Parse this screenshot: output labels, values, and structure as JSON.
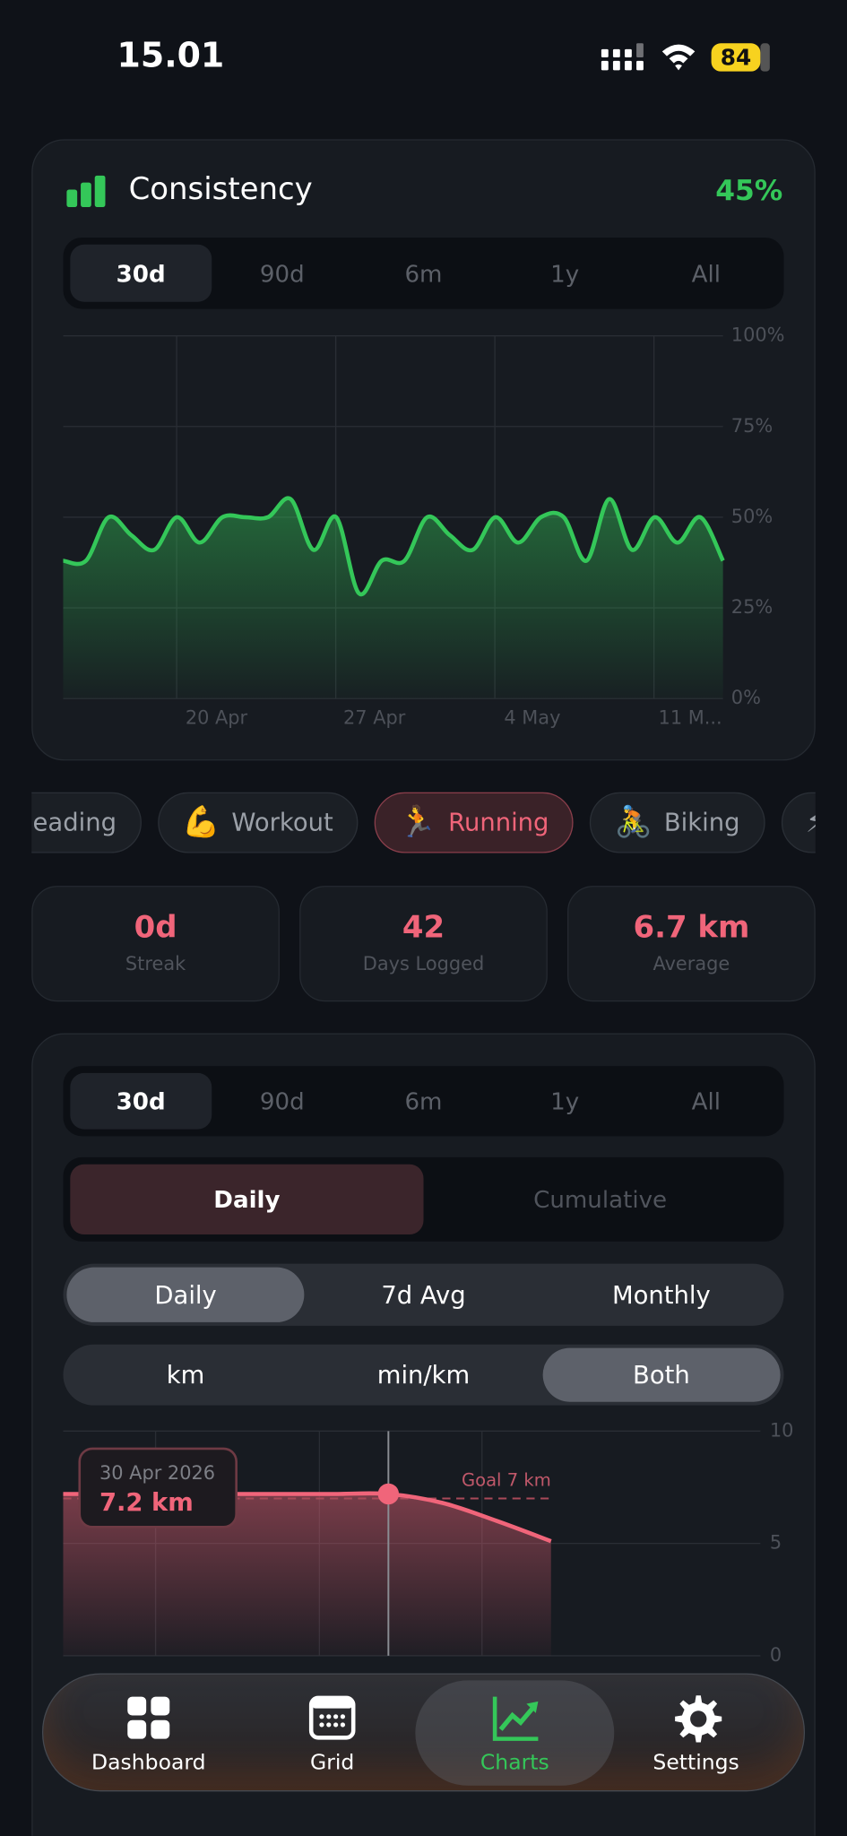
{
  "status_bar": {
    "time": "15.01",
    "battery": "84"
  },
  "consistency": {
    "title": "Consistency",
    "percent": "45%",
    "ranges": [
      "30d",
      "90d",
      "6m",
      "1y",
      "All"
    ],
    "selected_range": 0,
    "chart": {
      "type": "area",
      "color": "#34c759",
      "ylim": [
        0,
        100
      ],
      "yticks": [
        {
          "value": 0,
          "label": "0%"
        },
        {
          "value": 25,
          "label": "25%"
        },
        {
          "value": 50,
          "label": "50%"
        },
        {
          "value": 75,
          "label": "75%"
        },
        {
          "value": 100,
          "label": "100%"
        }
      ],
      "x_labels": [
        "20 Apr",
        "27 Apr",
        "4 May",
        "11 M..."
      ],
      "values": [
        38,
        38,
        50,
        45,
        41,
        50,
        43,
        50,
        50,
        50,
        55,
        41,
        50,
        29,
        38,
        38,
        50,
        45,
        41,
        50,
        43,
        50,
        50,
        38,
        55,
        41,
        50,
        43,
        50,
        38
      ]
    }
  },
  "activities": [
    {
      "icon": "",
      "label": "eading"
    },
    {
      "icon": "💪",
      "label": "Workout"
    },
    {
      "icon": "🏃",
      "label": "Running"
    },
    {
      "icon": "🚴",
      "label": "Biking"
    },
    {
      "icon": "⚡",
      "label": ""
    }
  ],
  "selected_activity": 2,
  "stats": [
    {
      "value": "0d",
      "label": "Streak"
    },
    {
      "value": "42",
      "label": "Days Logged"
    },
    {
      "value": "6.7 km",
      "label": "Average"
    }
  ],
  "running": {
    "ranges": [
      "30d",
      "90d",
      "6m",
      "1y",
      "All"
    ],
    "selected_range": 0,
    "modes": [
      "Daily",
      "Cumulative"
    ],
    "selected_mode": 0,
    "smoothing": [
      "Daily",
      "7d Avg",
      "Monthly"
    ],
    "selected_smoothing": 0,
    "units": [
      "km",
      "min/km",
      "Both"
    ],
    "selected_unit": 2,
    "chart": {
      "type": "area",
      "color": "#f0657a",
      "ylim": [
        0,
        10
      ],
      "yticks": [
        0,
        5,
        10
      ],
      "values": [
        7.2,
        7.2,
        7.2,
        7.2,
        7.2,
        7.2,
        7.2,
        6.8,
        6.0,
        5.1
      ],
      "goal": {
        "value": 7,
        "label": "Goal 7 km"
      },
      "tooltip": {
        "index": 6,
        "date": "30 Apr 2026",
        "value": "7.2 km"
      }
    }
  },
  "nav": {
    "items": [
      {
        "label": "Dashboard"
      },
      {
        "label": "Grid"
      },
      {
        "label": "Charts"
      },
      {
        "label": "Settings"
      }
    ],
    "selected": 2
  }
}
